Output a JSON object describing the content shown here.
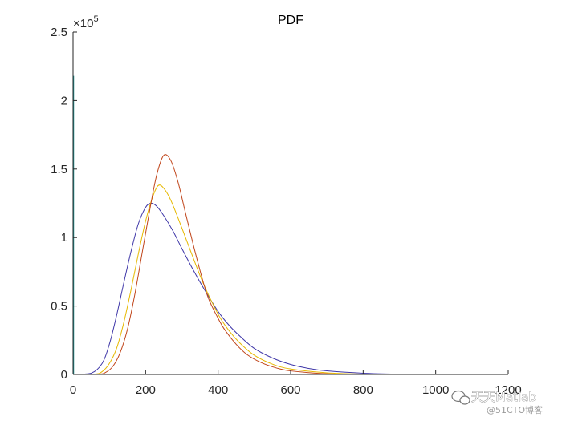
{
  "chart_data": {
    "type": "line",
    "title": "PDF",
    "xlabel": "",
    "ylabel": "",
    "xlim": [
      0,
      1200
    ],
    "ylim": [
      0,
      250000
    ],
    "x_ticks": [
      0,
      200,
      400,
      600,
      800,
      1000,
      1200
    ],
    "y_ticks": [
      0,
      0.5,
      1,
      1.5,
      2,
      2.5
    ],
    "y_tick_labels": [
      "0",
      "0.5",
      "1",
      "1.5",
      "2",
      "2.5"
    ],
    "y_exponent_label": "×10",
    "y_exponent_power": "5",
    "grid": false,
    "legend": "none",
    "series": [
      {
        "color": "#3f37a8",
        "x": [
          0,
          50,
          80,
          100,
          120,
          140,
          160,
          180,
          200,
          215,
          230,
          250,
          275,
          300,
          330,
          360,
          400,
          430,
          460,
          500,
          550,
          600,
          650,
          700,
          800,
          900,
          1000,
          1200
        ],
        "y": [
          0,
          900,
          8000,
          22000,
          43000,
          67000,
          90000,
          110000,
          122000,
          125000,
          123000,
          116000,
          105000,
          92000,
          77000,
          63000,
          46000,
          36000,
          28000,
          19000,
          12000,
          7300,
          4400,
          2600,
          900,
          250,
          60,
          0
        ]
      },
      {
        "color": "#e6b800",
        "x": [
          0,
          60,
          80,
          100,
          120,
          140,
          160,
          180,
          200,
          220,
          235,
          250,
          270,
          300,
          330,
          360,
          400,
          430,
          460,
          500,
          550,
          600,
          700,
          800,
          900,
          1000,
          1200
        ],
        "y": [
          0,
          300,
          2000,
          8000,
          19000,
          38000,
          62000,
          88000,
          112000,
          130000,
          138000,
          136000,
          127000,
          107000,
          86000,
          66000,
          44000,
          32000,
          23000,
          14000,
          7500,
          4000,
          1200,
          300,
          60,
          0,
          0
        ]
      },
      {
        "color": "#c0451a",
        "x": [
          0,
          70,
          90,
          110,
          130,
          150,
          170,
          190,
          210,
          230,
          250,
          270,
          290,
          310,
          340,
          370,
          400,
          420,
          450,
          480,
          520,
          560,
          600,
          700,
          800,
          900,
          1200
        ],
        "y": [
          0,
          200,
          1500,
          6000,
          16000,
          33000,
          58000,
          88000,
          118000,
          145000,
          160000,
          156000,
          140000,
          118000,
          86000,
          58000,
          41000,
          32000,
          22000,
          14500,
          8500,
          4800,
          2600,
          500,
          80,
          0,
          0
        ]
      }
    ],
    "annotation_spike": {
      "x": 0,
      "y": 218000,
      "color": "#1f8f8f"
    }
  },
  "watermark": {
    "main": "天天Matlab",
    "sub": "@51CTO博客"
  }
}
